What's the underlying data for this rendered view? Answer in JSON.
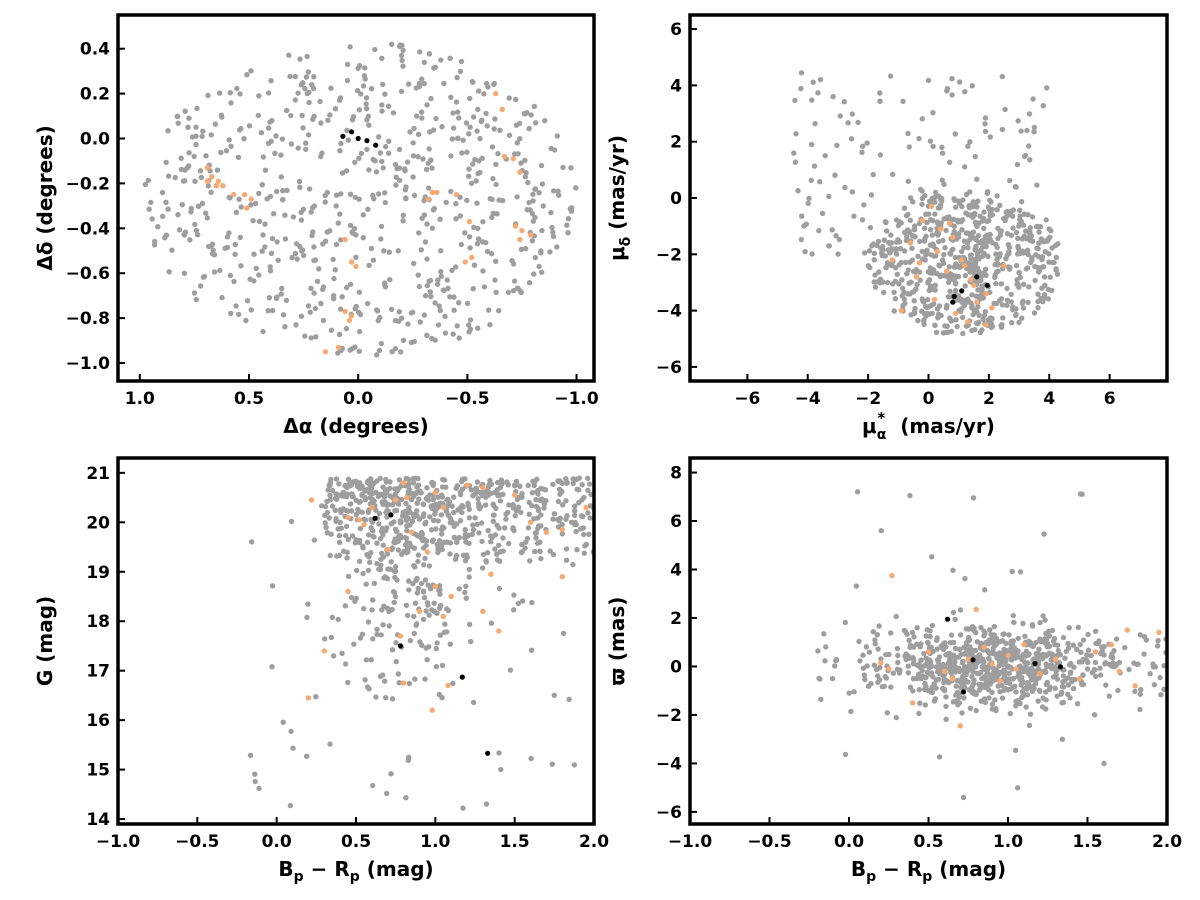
{
  "colors": {
    "field": "#9e9e9e",
    "candidate": "#f6aa72",
    "member": "#000000",
    "frame": "#000000"
  },
  "chart_data": [
    {
      "type": "scatter",
      "title": "",
      "xlabel": "Δα (degrees)",
      "ylabel": "Δδ (degrees)",
      "xlim": [
        1.1,
        -1.08
      ],
      "ylim": [
        -1.08,
        0.55
      ],
      "xticks": [
        1.0,
        0.5,
        0.0,
        -0.5,
        -1.0
      ],
      "xtick_labels": [
        "1.0",
        "0.5",
        "0.0",
        "−0.5",
        "−1.0"
      ],
      "yticks": [
        0.4,
        0.2,
        0.0,
        -0.2,
        -0.4,
        -0.6,
        -0.8,
        -1.0
      ],
      "ytick_labels": [
        "0.4",
        "0.2",
        "0.0",
        "−0.2",
        "−0.4",
        "−0.6",
        "−0.8",
        "−1.0"
      ],
      "series": [
        {
          "role": "field",
          "count": 700,
          "distribution": "ellipse",
          "center": [
            -0.01,
            -0.27
          ],
          "radii": [
            0.99,
            0.7
          ],
          "seed": 11
        },
        {
          "role": "candidate",
          "points": [
            [
              0.69,
              -0.13
            ],
            [
              0.67,
              -0.17
            ],
            [
              0.64,
              -0.19
            ],
            [
              0.62,
              -0.21
            ],
            [
              0.65,
              -0.21
            ],
            [
              0.69,
              -0.19
            ],
            [
              0.57,
              -0.25
            ],
            [
              0.52,
              -0.25
            ],
            [
              0.49,
              -0.27
            ],
            [
              0.51,
              -0.31
            ],
            [
              -0.34,
              -0.24
            ],
            [
              -0.36,
              -0.24
            ],
            [
              -0.32,
              -0.27
            ],
            [
              -0.45,
              -0.25
            ],
            [
              -0.63,
              0.2
            ],
            [
              -0.66,
              0.13
            ],
            [
              -0.67,
              -0.08
            ],
            [
              -0.71,
              -0.09
            ],
            [
              -0.74,
              -0.15
            ],
            [
              -0.72,
              -0.39
            ],
            [
              -0.75,
              -0.41
            ],
            [
              -0.79,
              -0.43
            ],
            [
              -0.74,
              -0.45
            ],
            [
              -0.51,
              -0.37
            ],
            [
              -0.52,
              -0.53
            ],
            [
              -0.49,
              -0.55
            ],
            [
              0.06,
              -0.45
            ],
            [
              0.03,
              -0.55
            ],
            [
              0.01,
              -0.57
            ],
            [
              0.06,
              -0.77
            ],
            [
              0.03,
              -0.79
            ],
            [
              0.04,
              -0.81
            ],
            [
              0.15,
              -0.95
            ],
            [
              0.09,
              -0.93
            ]
          ]
        },
        {
          "role": "member",
          "points": [
            [
              0.07,
              0.01
            ],
            [
              0.03,
              0.03
            ],
            [
              0.0,
              0.0
            ],
            [
              -0.04,
              -0.01
            ],
            [
              -0.08,
              -0.03
            ]
          ]
        }
      ]
    },
    {
      "type": "scatter",
      "title": "",
      "xlabel": "μα* (mas/yr)",
      "xlabel_parts": {
        "main": "μ",
        "sub": "α",
        "sup": "*",
        "rest": "(mas/yr)"
      },
      "ylabel": "μδ (mas/yr)",
      "ylabel_parts": {
        "main": "μ",
        "sub": "δ",
        "rest": "(mas/yr)"
      },
      "xlim": [
        -7.9,
        7.9
      ],
      "ylim": [
        -6.5,
        6.5
      ],
      "xticks": [
        -6,
        -4,
        -2,
        0,
        2,
        4,
        6
      ],
      "xtick_labels": [
        "−6",
        "−4",
        "−2",
        "0",
        "2",
        "4",
        "6"
      ],
      "yticks": [
        6,
        4,
        2,
        0,
        -2,
        -4,
        -6
      ],
      "ytick_labels": [
        "6",
        "4",
        "2",
        "0",
        "−2",
        "−4",
        "−6"
      ],
      "series": [
        {
          "role": "field",
          "count": 800,
          "distribution": "pm_blob",
          "center": [
            1.2,
            -2.3
          ],
          "radii": [
            3.2,
            2.6
          ],
          "seed": 23
        },
        {
          "role": "candidate",
          "points": [
            [
              0.1,
              -0.3
            ],
            [
              -0.2,
              -0.8
            ],
            [
              0.4,
              -1.1
            ],
            [
              -0.6,
              -1.6
            ],
            [
              0.3,
              -1.9
            ],
            [
              0.8,
              -1.4
            ],
            [
              1.1,
              -2.2
            ],
            [
              0.6,
              -2.6
            ],
            [
              -0.4,
              -2.8
            ],
            [
              1.4,
              -2.9
            ],
            [
              1.9,
              -3.4
            ],
            [
              1.6,
              -3.7
            ],
            [
              2.1,
              -3.9
            ],
            [
              0.9,
              -4.1
            ],
            [
              0.2,
              -3.6
            ],
            [
              -0.9,
              -4.0
            ],
            [
              1.3,
              -4.4
            ],
            [
              1.9,
              -4.5
            ],
            [
              2.5,
              -2.4
            ],
            [
              -1.2,
              -2.2
            ],
            [
              0.7,
              -0.9
            ],
            [
              -0.3,
              -2.3
            ],
            [
              1.2,
              -2.4
            ],
            [
              1.5,
              -3.1
            ]
          ]
        },
        {
          "role": "member",
          "points": [
            [
              1.6,
              -2.8
            ],
            [
              1.95,
              -3.1
            ],
            [
              1.1,
              -3.3
            ],
            [
              0.85,
              -3.5
            ],
            [
              0.8,
              -3.7
            ]
          ]
        }
      ]
    },
    {
      "type": "scatter",
      "title": "",
      "xlabel": "Bp − Rp (mag)",
      "xlabel_parts": {
        "a": "B",
        "a_sub": "p",
        "op": "−",
        "b": "R",
        "b_sub": "p",
        "rest": "(mag)"
      },
      "ylabel": "G (mag)",
      "xlim": [
        -1.0,
        2.0
      ],
      "ylim": [
        13.9,
        21.3
      ],
      "xticks": [
        -1.0,
        -0.5,
        0.0,
        0.5,
        1.0,
        1.5,
        2.0
      ],
      "xtick_labels": [
        "−1.0",
        "−0.5",
        "0.0",
        "0.5",
        "1.0",
        "1.5",
        "2.0"
      ],
      "yticks": [
        21,
        20,
        19,
        18,
        17,
        16,
        15,
        14
      ],
      "ytick_labels": [
        "21",
        "20",
        "19",
        "18",
        "17",
        "16",
        "15",
        "14"
      ],
      "series": [
        {
          "role": "field",
          "count": 820,
          "distribution": "cmd",
          "seed": 37
        },
        {
          "role": "candidate",
          "points": [
            [
              0.22,
              20.45
            ],
            [
              0.45,
              20.1
            ],
            [
              0.52,
              20.05
            ],
            [
              0.55,
              19.95
            ],
            [
              0.6,
              20.3
            ],
            [
              0.7,
              19.45
            ],
            [
              0.75,
              20.45
            ],
            [
              0.8,
              20.8
            ],
            [
              0.82,
              20.5
            ],
            [
              0.85,
              19.8
            ],
            [
              0.95,
              19.4
            ],
            [
              1.0,
              20.6
            ],
            [
              1.05,
              20.3
            ],
            [
              1.3,
              20.7
            ],
            [
              1.5,
              20.55
            ],
            [
              1.6,
              20.0
            ],
            [
              1.7,
              19.8
            ],
            [
              1.8,
              19.85
            ],
            [
              1.95,
              20.3
            ],
            [
              0.9,
              18.2
            ],
            [
              1.0,
              18.7
            ],
            [
              1.05,
              18.1
            ],
            [
              1.1,
              18.5
            ],
            [
              1.3,
              18.2
            ],
            [
              1.4,
              17.8
            ],
            [
              0.3,
              17.4
            ],
            [
              0.2,
              16.45
            ],
            [
              0.78,
              17.7
            ],
            [
              0.8,
              16.75
            ],
            [
              1.08,
              16.7
            ],
            [
              0.98,
              16.2
            ],
            [
              1.8,
              18.9
            ],
            [
              0.45,
              18.6
            ],
            [
              1.35,
              18.95
            ],
            [
              1.2,
              20.75
            ]
          ]
        },
        {
          "role": "member",
          "points": [
            [
              0.62,
              20.08
            ],
            [
              0.72,
              20.15
            ],
            [
              0.78,
              17.5
            ],
            [
              1.17,
              16.87
            ],
            [
              1.33,
              15.33
            ]
          ]
        }
      ]
    },
    {
      "type": "scatter",
      "title": "",
      "xlabel": "Bp − Rp (mag)",
      "xlabel_parts": {
        "a": "B",
        "a_sub": "p",
        "op": "−",
        "b": "R",
        "b_sub": "p",
        "rest": "(mag)"
      },
      "ylabel": "ϖ (mas)",
      "xlim": [
        -1.0,
        2.0
      ],
      "ylim": [
        -6.5,
        8.6
      ],
      "xticks": [
        -1.0,
        -0.5,
        0.0,
        0.5,
        1.0,
        1.5,
        2.0
      ],
      "xtick_labels": [
        "−1.0",
        "−0.5",
        "0.0",
        "0.5",
        "1.0",
        "1.5",
        "2.0"
      ],
      "yticks": [
        8,
        6,
        4,
        2,
        0,
        -2,
        -4,
        -6
      ],
      "ytick_labels": [
        "8",
        "6",
        "4",
        "2",
        "0",
        "−2",
        "−4",
        "−6"
      ],
      "series": [
        {
          "role": "field",
          "count": 820,
          "distribution": "parallax",
          "seed": 53
        },
        {
          "role": "candidate",
          "points": [
            [
              0.27,
              3.75
            ],
            [
              0.2,
              0.15
            ],
            [
              0.25,
              -0.1
            ],
            [
              0.4,
              -1.5
            ],
            [
              0.5,
              0.6
            ],
            [
              0.6,
              -0.2
            ],
            [
              0.7,
              -2.45
            ],
            [
              0.8,
              2.35
            ],
            [
              0.85,
              0.8
            ],
            [
              0.9,
              0.1
            ],
            [
              0.95,
              -0.6
            ],
            [
              1.0,
              0.45
            ],
            [
              1.05,
              -0.1
            ],
            [
              1.1,
              0.9
            ],
            [
              1.2,
              -0.3
            ],
            [
              1.3,
              0.3
            ],
            [
              1.45,
              -0.5
            ],
            [
              1.55,
              0.6
            ],
            [
              1.65,
              0.9
            ],
            [
              1.7,
              -0.2
            ],
            [
              1.75,
              1.5
            ],
            [
              1.8,
              -0.8
            ],
            [
              1.95,
              1.4
            ],
            [
              0.75,
              0.3
            ],
            [
              0.65,
              -0.5
            ]
          ]
        },
        {
          "role": "member",
          "points": [
            [
              0.62,
              1.95
            ],
            [
              0.78,
              0.27
            ],
            [
              0.72,
              -1.05
            ],
            [
              1.17,
              0.12
            ],
            [
              1.33,
              -0.02
            ]
          ]
        }
      ]
    }
  ]
}
